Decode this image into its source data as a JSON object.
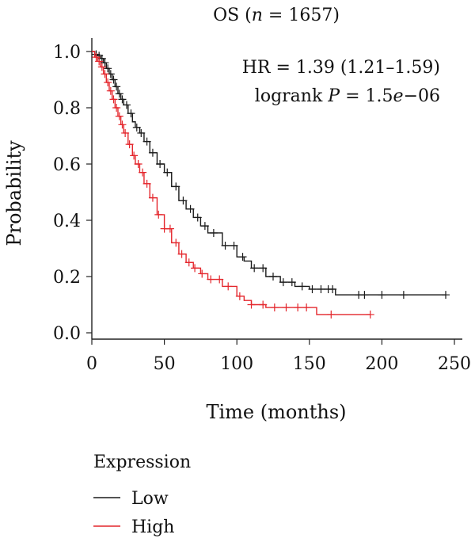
{
  "chart_data": {
    "type": "line",
    "title": {
      "prefix": "OS (",
      "var": "n",
      "suffix": " = 1657)"
    },
    "annotations": {
      "hr": "HR = 1.39 (1.21–1.59)",
      "logrank": {
        "prefix": "logrank ",
        "var": "P",
        "mid": " = 1.5",
        "exp": "e",
        "suffix": "−06"
      }
    },
    "xlabel": "Time (months)",
    "ylabel": "Probability",
    "xlim": [
      0,
      250
    ],
    "ylim": [
      0,
      1
    ],
    "xticks": [
      0,
      50,
      100,
      150,
      200,
      250
    ],
    "yticks": [
      0.0,
      0.2,
      0.4,
      0.6,
      0.8,
      1.0
    ],
    "ytick_labels": [
      "0.0",
      "0.2",
      "0.4",
      "0.6",
      "0.8",
      "1.0"
    ],
    "grid": false,
    "legend": {
      "title": "Expression",
      "placement": "bottom-left"
    },
    "series": [
      {
        "name": "Low",
        "color": "#1a1a1a",
        "x": [
          0,
          2,
          4,
          6,
          8,
          10,
          12,
          14,
          16,
          18,
          20,
          22,
          25,
          28,
          30,
          33,
          36,
          40,
          45,
          50,
          55,
          60,
          65,
          70,
          75,
          80,
          90,
          100,
          105,
          110,
          120,
          130,
          140,
          150,
          160,
          168,
          180,
          200,
          220,
          244
        ],
        "y": [
          1.0,
          0.99,
          0.985,
          0.975,
          0.96,
          0.94,
          0.92,
          0.9,
          0.875,
          0.85,
          0.83,
          0.81,
          0.78,
          0.75,
          0.73,
          0.71,
          0.68,
          0.64,
          0.6,
          0.57,
          0.52,
          0.47,
          0.44,
          0.41,
          0.38,
          0.355,
          0.31,
          0.27,
          0.255,
          0.23,
          0.2,
          0.18,
          0.165,
          0.155,
          0.155,
          0.135,
          0.135,
          0.135,
          0.135,
          0.135
        ],
        "censor_x": [
          3,
          5,
          7,
          9,
          11,
          13,
          15,
          17,
          19,
          21,
          24,
          27,
          31,
          34,
          38,
          42,
          47,
          52,
          58,
          63,
          68,
          73,
          78,
          84,
          92,
          98,
          104,
          112,
          118,
          125,
          132,
          138,
          145,
          152,
          158,
          163,
          166,
          184,
          188,
          200,
          215,
          244
        ]
      },
      {
        "name": "High",
        "color": "#e4262c",
        "x": [
          0,
          2,
          4,
          6,
          8,
          10,
          12,
          14,
          16,
          18,
          20,
          22,
          25,
          28,
          30,
          33,
          36,
          40,
          45,
          50,
          55,
          60,
          65,
          70,
          75,
          80,
          90,
          100,
          105,
          110,
          120,
          130,
          140,
          150,
          155,
          170,
          192
        ],
        "y": [
          1.0,
          0.98,
          0.965,
          0.945,
          0.92,
          0.89,
          0.86,
          0.83,
          0.8,
          0.77,
          0.74,
          0.71,
          0.67,
          0.63,
          0.6,
          0.57,
          0.53,
          0.48,
          0.42,
          0.37,
          0.32,
          0.28,
          0.25,
          0.23,
          0.21,
          0.19,
          0.165,
          0.13,
          0.115,
          0.1,
          0.09,
          0.09,
          0.09,
          0.09,
          0.065,
          0.065,
          0.065
        ],
        "censor_x": [
          3,
          5,
          7,
          9,
          11,
          13,
          15,
          17,
          19,
          21,
          23,
          26,
          29,
          32,
          35,
          38,
          42,
          46,
          50,
          54,
          58,
          62,
          67,
          71,
          76,
          82,
          88,
          94,
          102,
          110,
          118,
          126,
          134,
          142,
          148,
          165,
          192
        ]
      }
    ]
  }
}
